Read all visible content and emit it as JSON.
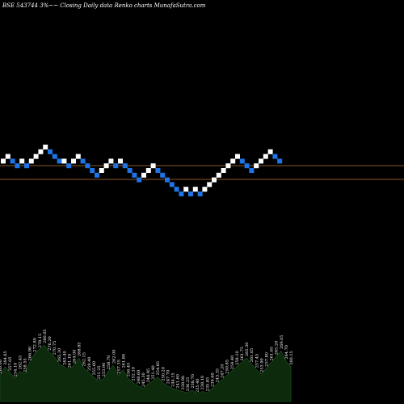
{
  "header": {
    "title": "BSE 543744  3%~~  Closing Daily data  Renko  charts MunafaSutra.com"
  },
  "colors": {
    "background": "#000000",
    "up_brick": "#ffffff",
    "down_brick": "#1e74e6",
    "reference_line": "#b87333",
    "volume_fill": "#0d2a0d",
    "volume_stroke": "#1f5a1f"
  },
  "chart_data": {
    "type": "renko",
    "reference_lines": [
      "upper",
      "lower"
    ],
    "bricks": [
      {
        "dir": "up",
        "level": 2
      },
      {
        "dir": "up",
        "level": 3
      },
      {
        "dir": "down",
        "level": 2
      },
      {
        "dir": "down",
        "level": 1
      },
      {
        "dir": "up",
        "level": 2
      },
      {
        "dir": "down",
        "level": 1
      },
      {
        "dir": "up",
        "level": 2
      },
      {
        "dir": "up",
        "level": 3
      },
      {
        "dir": "up",
        "level": 4
      },
      {
        "dir": "up",
        "level": 5
      },
      {
        "dir": "down",
        "level": 4
      },
      {
        "dir": "down",
        "level": 3
      },
      {
        "dir": "down",
        "level": 2
      },
      {
        "dir": "up",
        "level": 2
      },
      {
        "dir": "down",
        "level": 1
      },
      {
        "dir": "up",
        "level": 2
      },
      {
        "dir": "up",
        "level": 3
      },
      {
        "dir": "down",
        "level": 2
      },
      {
        "dir": "down",
        "level": 1
      },
      {
        "dir": "down",
        "level": 0
      },
      {
        "dir": "down",
        "level": -1
      },
      {
        "dir": "up",
        "level": 0
      },
      {
        "dir": "up",
        "level": 1
      },
      {
        "dir": "up",
        "level": 2
      },
      {
        "dir": "down",
        "level": 1
      },
      {
        "dir": "up",
        "level": 2
      },
      {
        "dir": "down",
        "level": 1
      },
      {
        "dir": "down",
        "level": 0
      },
      {
        "dir": "down",
        "level": -1
      },
      {
        "dir": "down",
        "level": -2
      },
      {
        "dir": "up",
        "level": -1
      },
      {
        "dir": "up",
        "level": 0
      },
      {
        "dir": "up",
        "level": 1
      },
      {
        "dir": "down",
        "level": 0
      },
      {
        "dir": "down",
        "level": -1
      },
      {
        "dir": "down",
        "level": -2
      },
      {
        "dir": "down",
        "level": -3
      },
      {
        "dir": "down",
        "level": -4
      },
      {
        "dir": "down",
        "level": -5
      },
      {
        "dir": "up",
        "level": -4
      },
      {
        "dir": "down",
        "level": -5
      },
      {
        "dir": "up",
        "level": -4
      },
      {
        "dir": "down",
        "level": -5
      },
      {
        "dir": "up",
        "level": -4
      },
      {
        "dir": "up",
        "level": -3
      },
      {
        "dir": "up",
        "level": -2
      },
      {
        "dir": "up",
        "level": -1
      },
      {
        "dir": "up",
        "level": 0
      },
      {
        "dir": "up",
        "level": 1
      },
      {
        "dir": "up",
        "level": 2
      },
      {
        "dir": "up",
        "level": 3
      },
      {
        "dir": "down",
        "level": 2
      },
      {
        "dir": "down",
        "level": 1
      },
      {
        "dir": "down",
        "level": 0
      },
      {
        "dir": "up",
        "level": 1
      },
      {
        "dir": "up",
        "level": 2
      },
      {
        "dir": "up",
        "level": 3
      },
      {
        "dir": "up",
        "level": 4
      },
      {
        "dir": "down",
        "level": 3
      },
      {
        "dir": "down",
        "level": 2
      }
    ],
    "volume": [
      {
        "value": 18,
        "label": "260.00"
      },
      {
        "value": 24,
        "label": "264.65"
      },
      {
        "value": 20,
        "label": "257.05"
      },
      {
        "value": 16,
        "label": "254.10"
      },
      {
        "value": 21,
        "label": "262.45"
      },
      {
        "value": 19,
        "label": "258.55"
      },
      {
        "value": 27,
        "label": "266.90"
      },
      {
        "value": 33,
        "label": "272.80"
      },
      {
        "value": 36,
        "label": "278.15"
      },
      {
        "value": 39,
        "label": "280.05"
      },
      {
        "value": 34,
        "label": "276.20"
      },
      {
        "value": 31,
        "label": "270.75"
      },
      {
        "value": 26,
        "label": "265.30"
      },
      {
        "value": 24,
        "label": "263.40"
      },
      {
        "value": 22,
        "label": "261.10"
      },
      {
        "value": 25,
        "label": "264.00"
      },
      {
        "value": 30,
        "label": "268.85"
      },
      {
        "value": 23,
        "label": "262.15"
      },
      {
        "value": 20,
        "label": "259.40"
      },
      {
        "value": 17,
        "label": "255.60"
      },
      {
        "value": 14,
        "label": "251.25"
      },
      {
        "value": 16,
        "label": "253.90"
      },
      {
        "value": 21,
        "label": "258.70"
      },
      {
        "value": 25,
        "label": "262.00"
      },
      {
        "value": 18,
        "label": "257.35"
      },
      {
        "value": 22,
        "label": "261.80"
      },
      {
        "value": 16,
        "label": "256.45"
      },
      {
        "value": 13,
        "label": "252.10"
      },
      {
        "value": 11,
        "label": "248.60"
      },
      {
        "value": 9,
        "label": "245.30"
      },
      {
        "value": 12,
        "label": "248.95"
      },
      {
        "value": 14,
        "label": "251.40"
      },
      {
        "value": 17,
        "label": "254.85"
      },
      {
        "value": 13,
        "label": "250.20"
      },
      {
        "value": 11,
        "label": "247.70"
      },
      {
        "value": 9,
        "label": "244.15"
      },
      {
        "value": 8,
        "label": "241.60"
      },
      {
        "value": 7,
        "label": "238.90"
      },
      {
        "value": 6,
        "label": "236.25"
      },
      {
        "value": 8,
        "label": "238.70"
      },
      {
        "value": 5,
        "label": "235.40"
      },
      {
        "value": 7,
        "label": "238.10"
      },
      {
        "value": 6,
        "label": "235.85"
      },
      {
        "value": 9,
        "label": "239.60"
      },
      {
        "value": 12,
        "label": "243.35"
      },
      {
        "value": 15,
        "label": "247.20"
      },
      {
        "value": 18,
        "label": "250.85"
      },
      {
        "value": 21,
        "label": "254.40"
      },
      {
        "value": 24,
        "label": "258.10"
      },
      {
        "value": 27,
        "label": "261.75"
      },
      {
        "value": 30,
        "label": "265.30"
      },
      {
        "value": 26,
        "label": "261.05"
      },
      {
        "value": 22,
        "label": "257.45"
      },
      {
        "value": 19,
        "label": "253.90"
      },
      {
        "value": 23,
        "label": "257.80"
      },
      {
        "value": 27,
        "label": "261.65"
      },
      {
        "value": 31,
        "label": "265.20"
      },
      {
        "value": 35,
        "label": "269.05"
      },
      {
        "value": 28,
        "label": "264.70"
      },
      {
        "value": 24,
        "label": "260.15"
      }
    ]
  }
}
